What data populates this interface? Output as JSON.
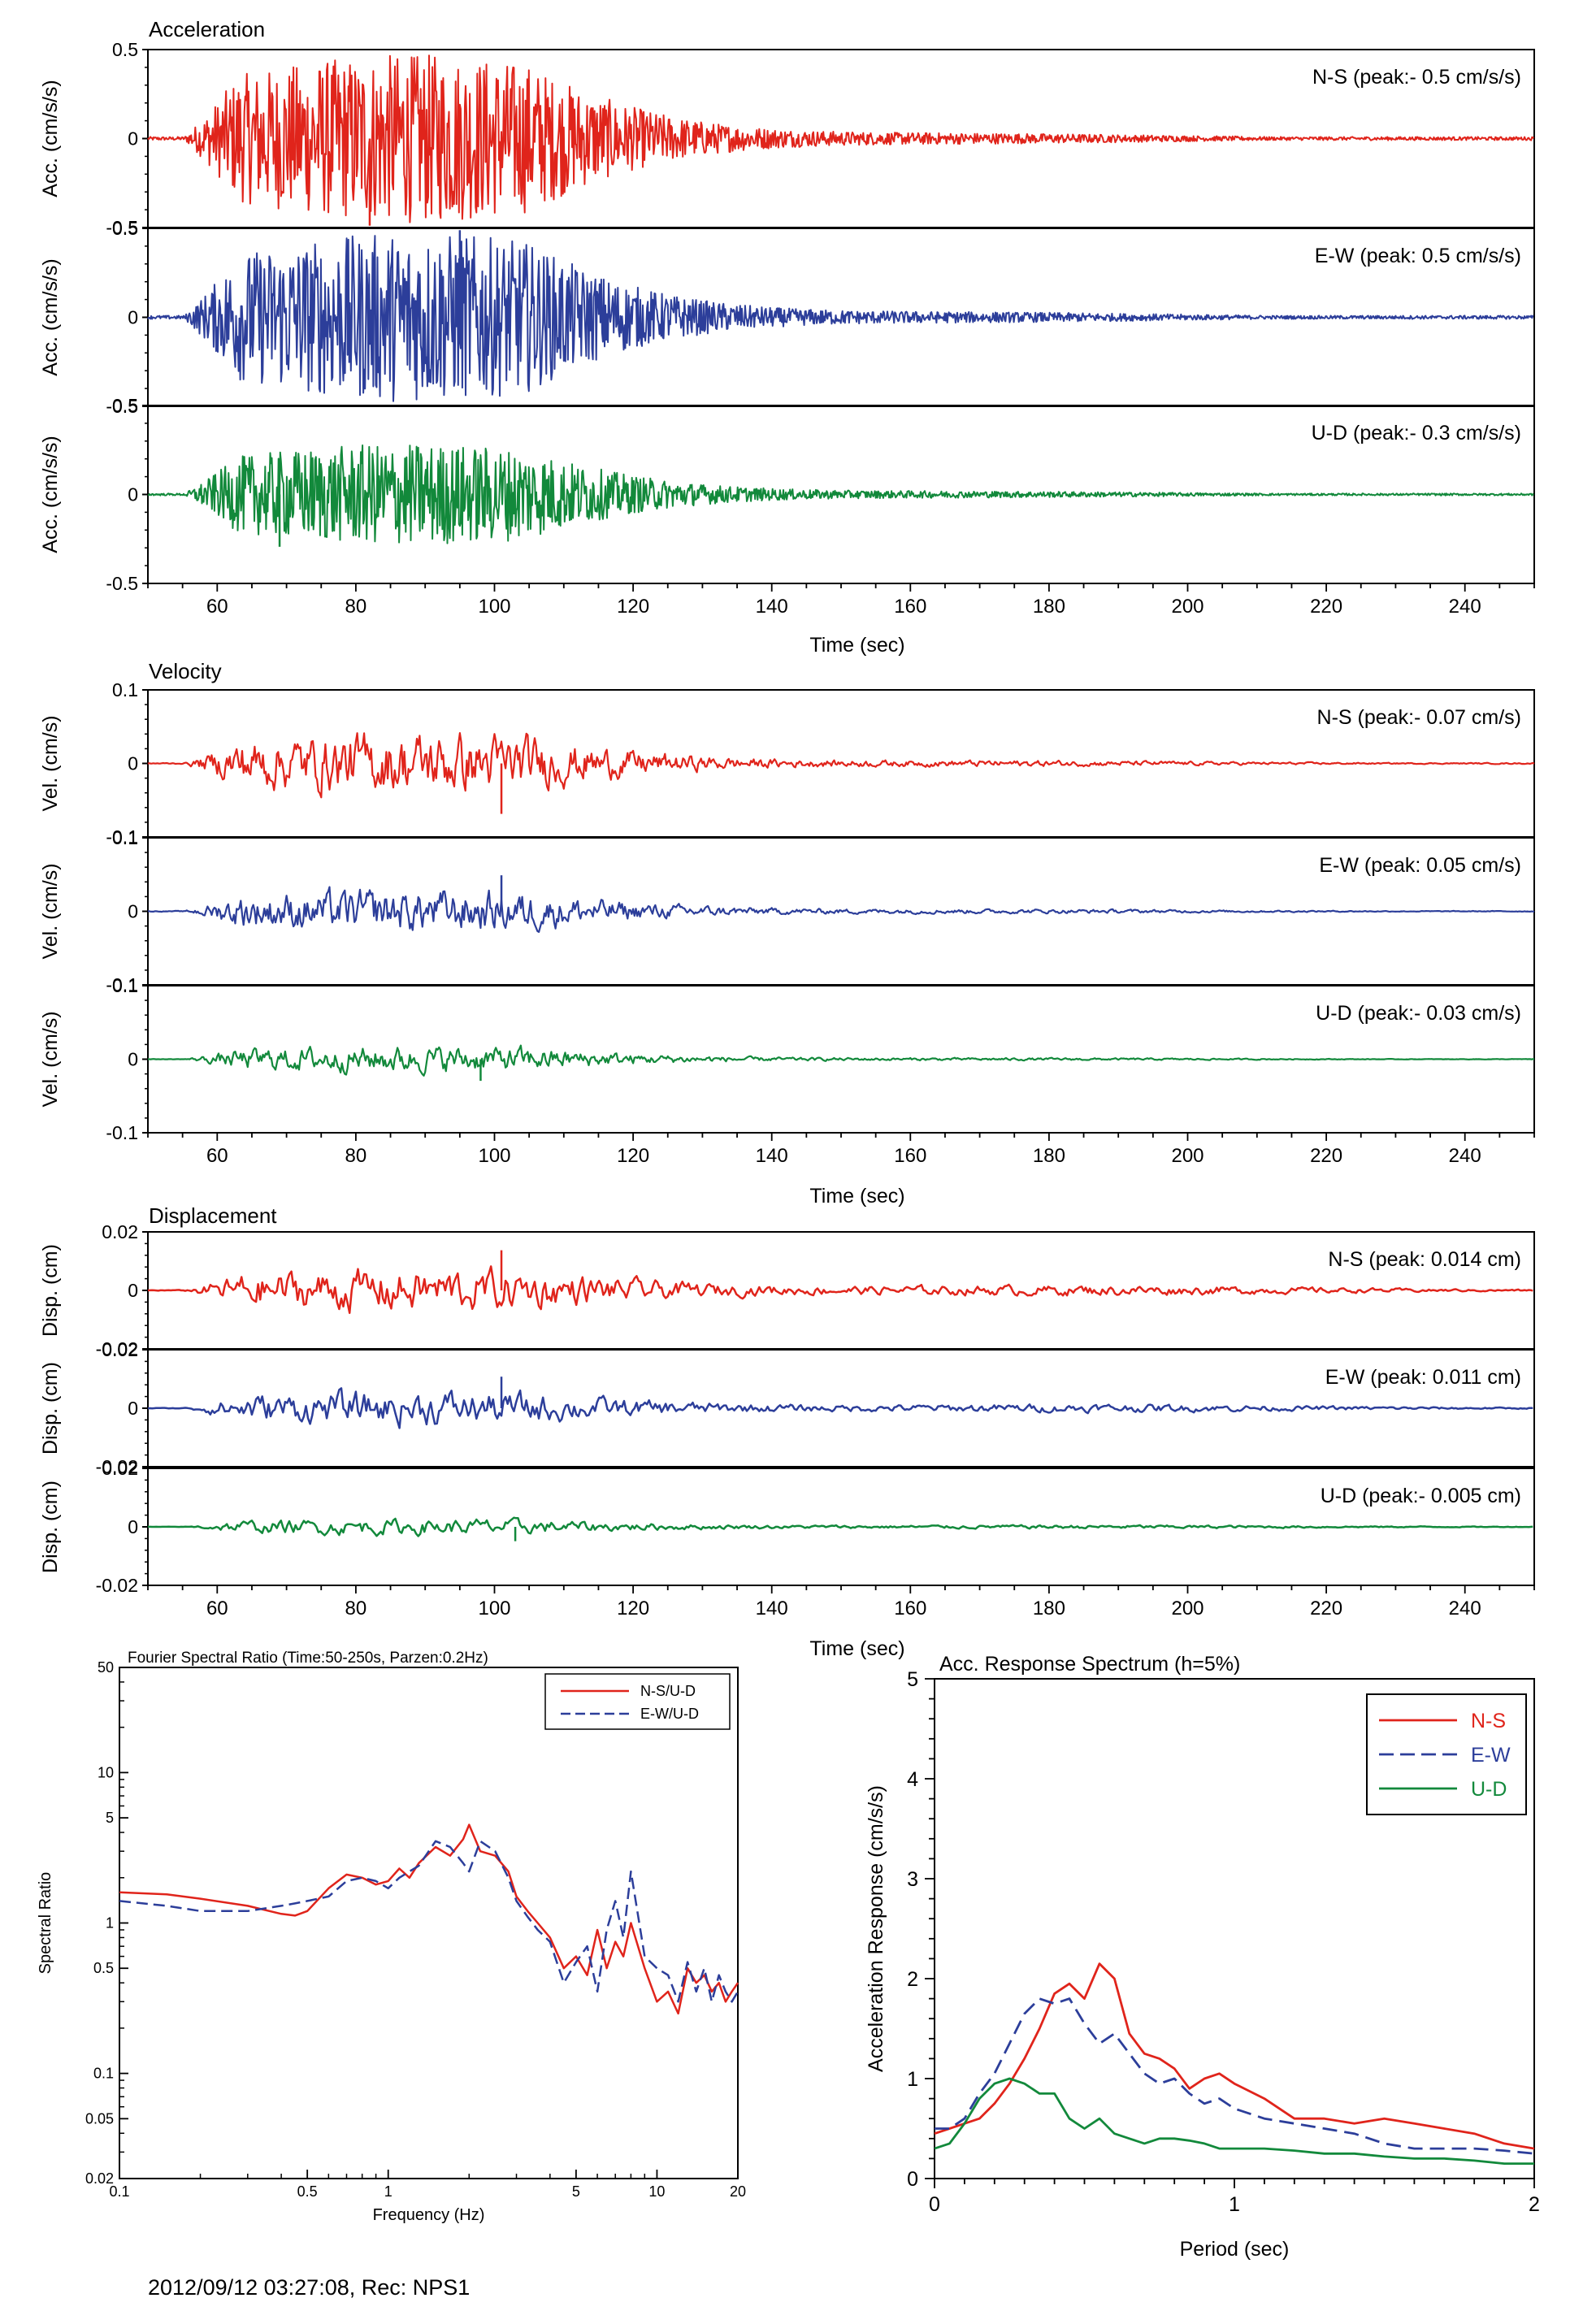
{
  "footer": "2012/09/12 03:27:08, Rec: NPS1",
  "colors": {
    "ns": "#e0241b",
    "ew": "#2c3e9a",
    "ud": "#12893b",
    "axis": "#000000"
  },
  "chart_data": [
    {
      "id": "acceleration",
      "type": "line",
      "title": "Acceleration",
      "xlabel": "Time (sec)",
      "xlim": [
        50,
        250
      ],
      "x_ticks": [
        60,
        80,
        100,
        120,
        140,
        160,
        180,
        200,
        220,
        240
      ],
      "ylim": [
        -0.5,
        0.5
      ],
      "y_ticks": [
        "0.5",
        "0",
        "-0.5"
      ],
      "ylabel": "Acc. (cm/s/s)",
      "panels": [
        {
          "component": "N-S",
          "label": "N-S (peak:- 0.5 cm/s/s)",
          "color": "#e0241b",
          "peak": -0.5
        },
        {
          "component": "E-W",
          "label": "E-W (peak: 0.5 cm/s/s)",
          "color": "#2c3e9a",
          "peak": 0.5
        },
        {
          "component": "U-D",
          "label": "U-D (peak:- 0.3 cm/s/s)",
          "color": "#12893b",
          "peak": -0.3
        }
      ]
    },
    {
      "id": "velocity",
      "type": "line",
      "title": "Velocity",
      "xlabel": "Time (sec)",
      "xlim": [
        50,
        250
      ],
      "x_ticks": [
        60,
        80,
        100,
        120,
        140,
        160,
        180,
        200,
        220,
        240
      ],
      "ylim": [
        -0.1,
        0.1
      ],
      "y_ticks": [
        "0.1",
        "0",
        "-0.1"
      ],
      "ylabel": "Vel. (cm/s)",
      "panels": [
        {
          "component": "N-S",
          "label": "N-S (peak:- 0.07 cm/s)",
          "color": "#e0241b",
          "peak": -0.07
        },
        {
          "component": "E-W",
          "label": "E-W (peak: 0.05 cm/s)",
          "color": "#2c3e9a",
          "peak": 0.05
        },
        {
          "component": "U-D",
          "label": "U-D (peak:- 0.03 cm/s)",
          "color": "#12893b",
          "peak": -0.03
        }
      ]
    },
    {
      "id": "displacement",
      "type": "line",
      "title": "Displacement",
      "xlabel": "Time (sec)",
      "xlim": [
        50,
        250
      ],
      "x_ticks": [
        60,
        80,
        100,
        120,
        140,
        160,
        180,
        200,
        220,
        240
      ],
      "ylim": [
        -0.02,
        0.02
      ],
      "y_ticks": [
        "0.02",
        "0",
        "-0.02"
      ],
      "ylabel": "Disp. (cm)",
      "panels": [
        {
          "component": "N-S",
          "label": "N-S (peak: 0.014 cm)",
          "color": "#e0241b",
          "peak": 0.014
        },
        {
          "component": "E-W",
          "label": "E-W (peak: 0.011 cm)",
          "color": "#2c3e9a",
          "peak": 0.011
        },
        {
          "component": "U-D",
          "label": "U-D (peak:- 0.005 cm)",
          "color": "#12893b",
          "peak": -0.005
        }
      ]
    },
    {
      "id": "fourier",
      "type": "line",
      "title": "Fourier Spectral Ratio (Time:50-250s, Parzen:0.2Hz)",
      "xlabel": "Frequency (Hz)",
      "ylabel": "Spectral Ratio",
      "xscale": "log",
      "yscale": "log",
      "xlim": [
        0.1,
        20
      ],
      "ylim": [
        0.02,
        50
      ],
      "x_ticks": [
        "0.1",
        "0.5",
        "1",
        "5",
        "10",
        "20"
      ],
      "y_ticks": [
        "50",
        "10",
        "5",
        "1",
        "0.5",
        "0.1",
        "0.05",
        "0.02"
      ],
      "legend": "top-right",
      "series": [
        {
          "name": "N-S/U-D",
          "color": "#e0241b",
          "dash": "solid",
          "x": [
            0.1,
            0.15,
            0.2,
            0.3,
            0.4,
            0.45,
            0.5,
            0.6,
            0.7,
            0.8,
            0.9,
            1.0,
            1.1,
            1.2,
            1.3,
            1.5,
            1.7,
            1.9,
            2.0,
            2.2,
            2.5,
            2.8,
            3.0,
            3.3,
            3.6,
            4.0,
            4.5,
            5.0,
            5.5,
            6.0,
            6.5,
            7.0,
            7.5,
            8.0,
            9.0,
            10,
            11,
            12,
            13,
            14,
            15,
            16,
            17,
            18,
            19,
            20
          ],
          "y": [
            1.6,
            1.55,
            1.45,
            1.3,
            1.15,
            1.12,
            1.2,
            1.7,
            2.1,
            2.0,
            1.8,
            1.9,
            2.3,
            2.0,
            2.5,
            3.2,
            2.8,
            3.6,
            4.5,
            3.0,
            2.8,
            2.2,
            1.5,
            1.2,
            1.0,
            0.8,
            0.5,
            0.6,
            0.45,
            0.9,
            0.5,
            0.75,
            0.6,
            1.0,
            0.5,
            0.3,
            0.35,
            0.25,
            0.5,
            0.4,
            0.45,
            0.35,
            0.4,
            0.3,
            0.35,
            0.4
          ]
        },
        {
          "name": "E-W/U-D",
          "color": "#2c3e9a",
          "dash": "dashed",
          "x": [
            0.1,
            0.15,
            0.2,
            0.3,
            0.4,
            0.45,
            0.5,
            0.6,
            0.7,
            0.8,
            0.9,
            1.0,
            1.1,
            1.2,
            1.3,
            1.5,
            1.7,
            1.9,
            2.0,
            2.2,
            2.5,
            2.8,
            3.0,
            3.3,
            3.6,
            4.0,
            4.5,
            5.0,
            5.5,
            6.0,
            6.5,
            7.0,
            7.5,
            8.0,
            9.0,
            10,
            11,
            12,
            13,
            14,
            15,
            16,
            17,
            18,
            19,
            20
          ],
          "y": [
            1.4,
            1.3,
            1.2,
            1.2,
            1.3,
            1.35,
            1.4,
            1.5,
            1.9,
            2.0,
            1.9,
            1.7,
            2.0,
            2.2,
            2.4,
            3.5,
            3.2,
            2.5,
            2.2,
            3.5,
            3.0,
            2.0,
            1.4,
            1.1,
            0.9,
            0.75,
            0.4,
            0.55,
            0.7,
            0.35,
            0.9,
            1.4,
            0.8,
            2.2,
            0.6,
            0.5,
            0.45,
            0.3,
            0.55,
            0.35,
            0.5,
            0.3,
            0.45,
            0.35,
            0.3,
            0.35
          ]
        }
      ]
    },
    {
      "id": "response",
      "type": "line",
      "title": "Acc. Response Spectrum (h=5%)",
      "xlabel": "Period (sec)",
      "ylabel": "Acceleration Response (cm/s/s)",
      "xlim": [
        0,
        2
      ],
      "ylim": [
        0,
        5
      ],
      "x_ticks": [
        0,
        1,
        2
      ],
      "y_ticks": [
        0,
        1,
        2,
        3,
        4,
        5
      ],
      "legend": "top-right",
      "series": [
        {
          "name": "N-S",
          "color": "#e0241b",
          "dash": "solid",
          "x": [
            0.0,
            0.05,
            0.1,
            0.15,
            0.2,
            0.25,
            0.3,
            0.35,
            0.4,
            0.45,
            0.5,
            0.55,
            0.6,
            0.65,
            0.7,
            0.75,
            0.8,
            0.85,
            0.9,
            0.95,
            1.0,
            1.1,
            1.2,
            1.3,
            1.4,
            1.5,
            1.6,
            1.7,
            1.8,
            1.9,
            2.0
          ],
          "y": [
            0.45,
            0.5,
            0.55,
            0.6,
            0.75,
            0.95,
            1.2,
            1.5,
            1.85,
            1.95,
            1.8,
            2.15,
            2.0,
            1.45,
            1.25,
            1.2,
            1.1,
            0.9,
            1.0,
            1.05,
            0.95,
            0.8,
            0.6,
            0.6,
            0.55,
            0.6,
            0.55,
            0.5,
            0.45,
            0.35,
            0.3
          ]
        },
        {
          "name": "E-W",
          "color": "#2c3e9a",
          "dash": "dashed",
          "x": [
            0.0,
            0.05,
            0.1,
            0.15,
            0.2,
            0.25,
            0.3,
            0.35,
            0.4,
            0.45,
            0.5,
            0.55,
            0.6,
            0.65,
            0.7,
            0.75,
            0.8,
            0.85,
            0.9,
            0.95,
            1.0,
            1.1,
            1.2,
            1.3,
            1.4,
            1.5,
            1.6,
            1.7,
            1.8,
            1.9,
            2.0
          ],
          "y": [
            0.5,
            0.5,
            0.6,
            0.85,
            1.05,
            1.35,
            1.65,
            1.8,
            1.75,
            1.8,
            1.55,
            1.35,
            1.45,
            1.25,
            1.05,
            0.95,
            1.0,
            0.85,
            0.75,
            0.8,
            0.7,
            0.6,
            0.55,
            0.5,
            0.45,
            0.35,
            0.3,
            0.3,
            0.3,
            0.28,
            0.25
          ]
        },
        {
          "name": "U-D",
          "color": "#12893b",
          "dash": "solid",
          "x": [
            0.0,
            0.05,
            0.1,
            0.15,
            0.2,
            0.25,
            0.3,
            0.35,
            0.4,
            0.45,
            0.5,
            0.55,
            0.6,
            0.65,
            0.7,
            0.75,
            0.8,
            0.85,
            0.9,
            0.95,
            1.0,
            1.1,
            1.2,
            1.3,
            1.4,
            1.5,
            1.6,
            1.7,
            1.8,
            1.9,
            2.0
          ],
          "y": [
            0.3,
            0.35,
            0.55,
            0.8,
            0.95,
            1.0,
            0.95,
            0.85,
            0.85,
            0.6,
            0.5,
            0.6,
            0.45,
            0.4,
            0.35,
            0.4,
            0.4,
            0.38,
            0.35,
            0.3,
            0.3,
            0.3,
            0.28,
            0.25,
            0.25,
            0.22,
            0.2,
            0.2,
            0.18,
            0.15,
            0.15
          ]
        }
      ]
    }
  ]
}
